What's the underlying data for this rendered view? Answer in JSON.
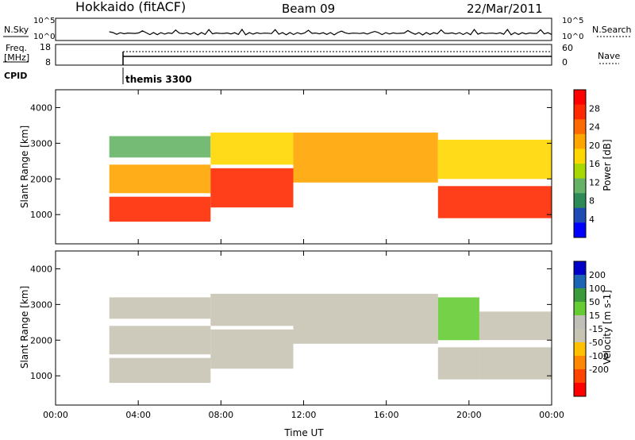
{
  "header": {
    "station": "Hokkaido (fitACF)",
    "beam": "Beam 09",
    "date": "22/Mar/2011"
  },
  "nsky_panel": {
    "left_label": "N.Sky",
    "left_ticks": [
      "10^5",
      "10^0"
    ],
    "right_label": "N.Search",
    "right_ticks": [
      "10^5",
      "10^0"
    ]
  },
  "freq_panel": {
    "left_label_line1": "Freq.",
    "left_label_line2": "[MHz]",
    "left_ticks": [
      "18",
      "8"
    ],
    "right_label": "Nave",
    "right_ticks": [
      "60",
      "0"
    ]
  },
  "cpid_panel": {
    "label": "CPID",
    "mode": "themis 3300"
  },
  "colors": {
    "power": [
      "#0000ff",
      "#1e4cb4",
      "#2e8b57",
      "#66b266",
      "#a8d800",
      "#ffd700",
      "#ffa500",
      "#ff6a00",
      "#ff2a00",
      "#ff0000"
    ],
    "velocity": [
      "#0000c8",
      "#1c64b4",
      "#3c9a3c",
      "#66cc33",
      "#c0c0b8",
      "#c8c4b4",
      "#ffc000",
      "#ff8800",
      "#ff4400",
      "#ff0000"
    ]
  },
  "chart_data": [
    {
      "type": "heatmap",
      "name": "power",
      "x_ticks": [
        "00:00",
        "04:00",
        "08:00",
        "12:00",
        "16:00",
        "20:00",
        "00:00"
      ],
      "xlim_hours": [
        0,
        24
      ],
      "ylabel": "Slant Range [km]",
      "y_ticks": [
        1000,
        2000,
        3000,
        4000
      ],
      "ylim": [
        180,
        4500
      ],
      "colorbar": {
        "label": "Power [dB]",
        "ticks": [
          4,
          8,
          12,
          16,
          20,
          24,
          28
        ],
        "range": [
          0,
          32
        ]
      },
      "bands": [
        {
          "start_hour": 2.6,
          "end_hour": 7.5,
          "ranges": [
            [
              800,
              1500,
              28
            ],
            [
              1600,
              2400,
              20
            ],
            [
              2600,
              3200,
              10
            ]
          ]
        },
        {
          "start_hour": 7.5,
          "end_hour": 11.5,
          "ranges": [
            [
              1200,
              2300,
              26
            ],
            [
              2400,
              3300,
              18
            ]
          ]
        },
        {
          "start_hour": 11.5,
          "end_hour": 18.5,
          "ranges": [
            [
              1900,
              3300,
              22
            ]
          ]
        },
        {
          "start_hour": 18.5,
          "end_hour": 24,
          "ranges": [
            [
              900,
              1800,
              28
            ],
            [
              2000,
              3100,
              18
            ]
          ]
        }
      ]
    },
    {
      "type": "heatmap",
      "name": "velocity",
      "x_ticks": [
        "00:00",
        "04:00",
        "08:00",
        "12:00",
        "16:00",
        "20:00",
        "00:00"
      ],
      "xlabel": "Time UT",
      "xlim_hours": [
        0,
        24
      ],
      "ylabel": "Slant Range [km]",
      "y_ticks": [
        1000,
        2000,
        3000,
        4000
      ],
      "ylim": [
        180,
        4500
      ],
      "colorbar": {
        "label": "Velocity [m s-1]",
        "ticks": [
          200,
          100,
          50,
          15,
          -15,
          -50,
          -100,
          -200
        ],
        "range": [
          -250,
          250
        ]
      },
      "bands": [
        {
          "start_hour": 2.6,
          "end_hour": 7.5,
          "ranges": [
            [
              800,
              1500,
              0
            ],
            [
              1600,
              2400,
              0
            ],
            [
              2600,
              3200,
              0
            ]
          ]
        },
        {
          "start_hour": 7.5,
          "end_hour": 11.5,
          "ranges": [
            [
              1200,
              2300,
              0
            ],
            [
              2400,
              3300,
              0
            ]
          ]
        },
        {
          "start_hour": 11.5,
          "end_hour": 18.5,
          "ranges": [
            [
              1900,
              3300,
              0
            ]
          ]
        },
        {
          "start_hour": 18.5,
          "end_hour": 20.5,
          "ranges": [
            [
              900,
              1800,
              0
            ],
            [
              2000,
              3200,
              60
            ]
          ]
        },
        {
          "start_hour": 20.5,
          "end_hour": 24,
          "ranges": [
            [
              900,
              1800,
              0
            ],
            [
              2000,
              2800,
              0
            ]
          ]
        }
      ]
    }
  ]
}
